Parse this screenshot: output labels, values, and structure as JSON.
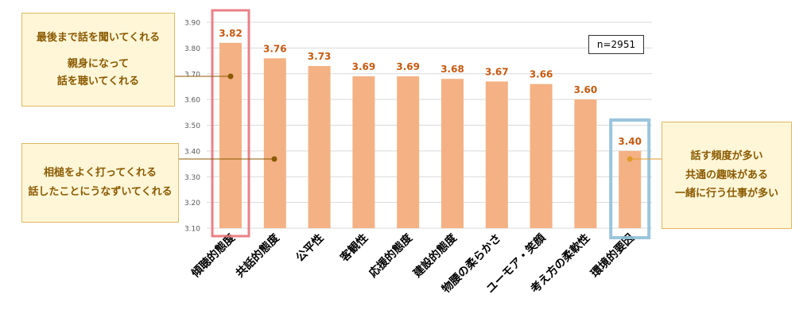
{
  "chart_data": {
    "type": "bar",
    "categories": [
      "傾聴的態度",
      "共話的態度",
      "公平性",
      "客観性",
      "応援的態度",
      "建設的態度",
      "物腰の柔らかさ",
      "ユーモア・笑顔",
      "考え方の柔軟性",
      "環境的要因"
    ],
    "values": [
      3.82,
      3.76,
      3.73,
      3.69,
      3.69,
      3.68,
      3.67,
      3.66,
      3.6,
      3.4
    ],
    "value_labels": [
      "3.82",
      "3.76",
      "3.73",
      "3.69",
      "3.69",
      "3.68",
      "3.67",
      "3.66",
      "3.60",
      "3.40"
    ],
    "yticks": [
      "3.10",
      "3.20",
      "3.30",
      "3.40",
      "3.50",
      "3.60",
      "3.70",
      "3.80",
      "3.90"
    ],
    "ylim": [
      3.1,
      3.9
    ],
    "grid": true,
    "legend": "none",
    "bar_color": "#f4b183",
    "value_label_color": "#c55a11",
    "highlight_red": "#e8737a",
    "highlight_blue": "#8fbfd9"
  },
  "annotations": {
    "n_label": "n=2951",
    "callout_top_left": [
      "最後まで話を聞いてくれる",
      "親身になって",
      "話を聴いてくれる"
    ],
    "callout_mid_left": [
      "相槌をよく打ってくれる",
      "話したことにうなずいてくれる"
    ],
    "callout_right": [
      "話す頻度が多い",
      "共通の趣味がある",
      "一緒に行う仕事が多い"
    ],
    "callout_color": "#8a5a00",
    "callout_dot_left": "#8a5a00",
    "callout_dot_right": "#e09a2a"
  }
}
